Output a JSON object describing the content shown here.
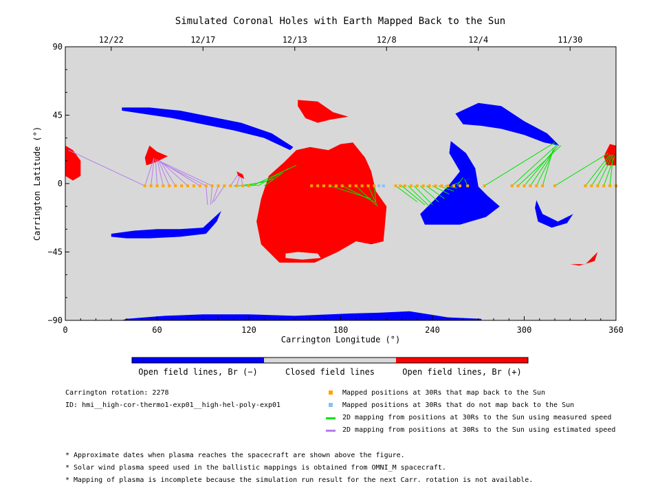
{
  "title": "Simulated Coronal Holes with Earth Mapped Back to the Sun",
  "colors": {
    "closed": "#d8d8d8",
    "open_negative": "#0000ff",
    "open_positive": "#ff0000",
    "mapped": "#ffa500",
    "not_mapped": "#87c1f5",
    "measured": "#00e400",
    "estimated": "#b57cf0"
  },
  "chart_data": {
    "type": "scatter",
    "title": "Simulated Coronal Holes with Earth Mapped Back to the Sun",
    "xlabel": "Carrington Longitude (°)",
    "ylabel": "Carrington Latitude (°)",
    "xlim": [
      0,
      360
    ],
    "ylim": [
      -90,
      90
    ],
    "xticks": [
      0,
      60,
      120,
      180,
      240,
      300,
      360
    ],
    "yticks": [
      -90,
      -45,
      0,
      45,
      90
    ],
    "ytick_labels": [
      "−90",
      "−45",
      "0",
      "45",
      "90"
    ],
    "top_axis": {
      "labels": [
        "12/22",
        "12/17",
        "12/13",
        "12/8",
        "12/4",
        "11/30"
      ],
      "longitudes": [
        30,
        90,
        150,
        210,
        270,
        330
      ]
    },
    "colorbar": {
      "labels": [
        "Open field lines, Br (−)",
        "Closed field lines",
        "Open field lines, Br (+)"
      ]
    },
    "coronal_holes": [
      {
        "polarity": "negative",
        "points": [
          [
            37,
            50
          ],
          [
            55,
            50
          ],
          [
            75,
            48
          ],
          [
            95,
            44
          ],
          [
            115,
            40
          ],
          [
            135,
            33
          ],
          [
            149,
            24
          ],
          [
            147,
            22
          ],
          [
            130,
            30
          ],
          [
            110,
            35
          ],
          [
            90,
            39
          ],
          [
            70,
            43
          ],
          [
            50,
            46
          ],
          [
            37,
            48
          ]
        ]
      },
      {
        "polarity": "negative",
        "points": [
          [
            30,
            -33
          ],
          [
            45,
            -31
          ],
          [
            60,
            -30
          ],
          [
            75,
            -30
          ],
          [
            90,
            -29
          ],
          [
            102,
            -18
          ],
          [
            99,
            -25
          ],
          [
            92,
            -33
          ],
          [
            75,
            -35
          ],
          [
            55,
            -36
          ],
          [
            40,
            -36
          ],
          [
            30,
            -35
          ]
        ]
      },
      {
        "polarity": "negative",
        "points": [
          [
            255,
            46
          ],
          [
            270,
            53
          ],
          [
            285,
            51
          ],
          [
            300,
            41
          ],
          [
            315,
            33
          ],
          [
            323,
            25
          ],
          [
            313,
            27
          ],
          [
            300,
            32
          ],
          [
            285,
            36
          ],
          [
            272,
            38
          ],
          [
            260,
            39
          ]
        ]
      },
      {
        "polarity": "negative",
        "points": [
          [
            252,
            28
          ],
          [
            262,
            20
          ],
          [
            268,
            10
          ],
          [
            270,
            -2
          ],
          [
            276,
            -8
          ],
          [
            284,
            -15
          ],
          [
            275,
            -22
          ],
          [
            258,
            -27
          ],
          [
            235,
            -27
          ],
          [
            232,
            -20
          ],
          [
            240,
            -12
          ],
          [
            250,
            -2
          ],
          [
            258,
            8
          ],
          [
            251,
            20
          ]
        ]
      },
      {
        "polarity": "negative",
        "points": [
          [
            308,
            -11
          ],
          [
            312,
            -20
          ],
          [
            322,
            -25
          ],
          [
            332,
            -20
          ],
          [
            328,
            -26
          ],
          [
            318,
            -29
          ],
          [
            309,
            -25
          ],
          [
            307,
            -16
          ]
        ]
      },
      {
        "polarity": "negative",
        "points": [
          [
            37,
            -90
          ],
          [
            40,
            -89
          ],
          [
            65,
            -87
          ],
          [
            90,
            -86
          ],
          [
            120,
            -86
          ],
          [
            150,
            -87
          ],
          [
            185,
            -85.5
          ],
          [
            205,
            -85
          ],
          [
            225,
            -84
          ],
          [
            250,
            -88
          ],
          [
            272,
            -89
          ],
          [
            272,
            -90
          ]
        ]
      },
      {
        "polarity": "positive",
        "points": [
          [
            151,
            22
          ],
          [
            160,
            24
          ],
          [
            172,
            22
          ],
          [
            180,
            26
          ],
          [
            188,
            27
          ],
          [
            196,
            17
          ],
          [
            200,
            8
          ],
          [
            203,
            -5
          ],
          [
            210,
            -15
          ],
          [
            208,
            -38
          ],
          [
            200,
            -40
          ],
          [
            190,
            -38
          ],
          [
            178,
            -45
          ],
          [
            163,
            -52
          ],
          [
            140,
            -52
          ],
          [
            128,
            -40
          ],
          [
            125,
            -25
          ],
          [
            128,
            -10
          ],
          [
            133,
            5
          ],
          [
            143,
            14
          ],
          [
            149,
            20
          ]
        ]
      },
      {
        "polarity": "positive",
        "points": [
          [
            152,
            55
          ],
          [
            165,
            54
          ],
          [
            175,
            47
          ],
          [
            185,
            44
          ],
          [
            173,
            42
          ],
          [
            165,
            40
          ],
          [
            157,
            43
          ],
          [
            152,
            51
          ]
        ]
      },
      {
        "polarity": "positive",
        "points": [
          [
            55,
            25
          ],
          [
            60,
            21
          ],
          [
            67,
            18
          ],
          [
            59,
            14
          ],
          [
            53,
            12
          ],
          [
            52,
            17
          ]
        ]
      },
      {
        "polarity": "positive",
        "points": [
          [
            0,
            25
          ],
          [
            5,
            22
          ],
          [
            10,
            15
          ],
          [
            10,
            5
          ],
          [
            5,
            2
          ],
          [
            0,
            5
          ]
        ]
      },
      {
        "polarity": "positive",
        "points": [
          [
            356,
            26
          ],
          [
            360,
            25
          ],
          [
            360,
            12
          ],
          [
            354,
            12
          ],
          [
            352,
            18
          ]
        ]
      },
      {
        "polarity": "positive",
        "points": [
          [
            330,
            -53
          ],
          [
            340,
            -53
          ],
          [
            348,
            -45
          ],
          [
            346,
            -51
          ],
          [
            336,
            -54
          ]
        ]
      },
      {
        "polarity": "positive",
        "points": [
          [
            112,
            8
          ],
          [
            116,
            6
          ],
          [
            117,
            3
          ],
          [
            113,
            5
          ]
        ]
      }
    ],
    "closed_islands": [
      {
        "points": [
          [
            144,
            -46
          ],
          [
            152,
            -45
          ],
          [
            165,
            -46
          ],
          [
            167,
            -49
          ],
          [
            155,
            -50
          ],
          [
            144,
            -49
          ]
        ]
      }
    ],
    "mapped_positions": {
      "y": -1.5,
      "x": [
        52,
        56,
        60,
        64,
        68,
        72,
        76,
        80,
        84,
        88,
        92,
        96,
        100,
        104,
        108,
        112,
        116,
        120,
        161,
        165,
        169,
        173,
        177,
        181,
        186,
        190,
        194,
        198,
        202,
        216,
        219,
        222,
        226,
        230,
        234,
        238,
        242,
        246,
        250,
        254,
        258,
        263,
        274,
        292,
        296,
        300,
        304,
        308,
        312,
        320,
        340,
        344,
        348,
        352,
        356,
        360
      ]
    },
    "not_mapped_positions": {
      "y": -1.5,
      "x": [
        205,
        208
      ]
    },
    "measured_mappings": [
      {
        "from": [
          122,
          -1.5
        ],
        "to": [
          151,
          12
        ]
      },
      {
        "from": [
          126,
          -1.5
        ],
        "to": [
          146,
          10
        ]
      },
      {
        "from": [
          130,
          -1.5
        ],
        "to": [
          142,
          7
        ]
      },
      {
        "from": [
          118,
          -1.5
        ],
        "to": [
          136,
          3
        ]
      },
      {
        "from": [
          114,
          -1.5
        ],
        "to": [
          130,
          1
        ]
      },
      {
        "from": [
          110,
          -1.5
        ],
        "to": [
          126,
          -1
        ]
      },
      {
        "from": [
          173,
          -1.5
        ],
        "to": [
          200,
          -10
        ]
      },
      {
        "from": [
          181,
          -1.5
        ],
        "to": [
          202,
          -12
        ]
      },
      {
        "from": [
          190,
          -1.5
        ],
        "to": [
          203,
          -14
        ]
      },
      {
        "from": [
          198,
          -1.5
        ],
        "to": [
          204,
          -15
        ]
      },
      {
        "from": [
          202,
          -1.5
        ],
        "to": [
          203,
          -13
        ]
      },
      {
        "from": [
          216,
          -1.5
        ],
        "to": [
          230,
          -12
        ]
      },
      {
        "from": [
          220,
          -1.5
        ],
        "to": [
          235,
          -14
        ]
      },
      {
        "from": [
          224,
          -1.5
        ],
        "to": [
          238,
          -15
        ]
      },
      {
        "from": [
          228,
          -1.5
        ],
        "to": [
          240,
          -14
        ]
      },
      {
        "from": [
          232,
          -1.5
        ],
        "to": [
          244,
          -12
        ]
      },
      {
        "from": [
          236,
          -1.5
        ],
        "to": [
          248,
          -10
        ]
      },
      {
        "from": [
          240,
          -1.5
        ],
        "to": [
          251,
          -7
        ]
      },
      {
        "from": [
          244,
          -1.5
        ],
        "to": [
          254,
          -5
        ]
      },
      {
        "from": [
          248,
          -1.5
        ],
        "to": [
          256,
          -3
        ]
      },
      {
        "from": [
          252,
          -1.5
        ],
        "to": [
          258,
          1
        ]
      },
      {
        "from": [
          256,
          -1.5
        ],
        "to": [
          260,
          4
        ]
      },
      {
        "from": [
          263,
          -1.5
        ],
        "to": [
          261,
          3
        ]
      },
      {
        "from": [
          274,
          -1.5
        ],
        "to": [
          320,
          27
        ]
      },
      {
        "from": [
          292,
          -1.5
        ],
        "to": [
          322,
          26
        ]
      },
      {
        "from": [
          296,
          -1.5
        ],
        "to": [
          324,
          25
        ]
      },
      {
        "from": [
          300,
          -1.5
        ],
        "to": [
          322,
          25
        ]
      },
      {
        "from": [
          304,
          -1.5
        ],
        "to": [
          321,
          24
        ]
      },
      {
        "from": [
          308,
          -1.5
        ],
        "to": [
          320,
          23
        ]
      },
      {
        "from": [
          312,
          -1.5
        ],
        "to": [
          319,
          23
        ]
      },
      {
        "from": [
          320,
          -1.5
        ],
        "to": [
          355,
          20
        ]
      },
      {
        "from": [
          340,
          -1.5
        ],
        "to": [
          356,
          19
        ]
      },
      {
        "from": [
          344,
          -1.5
        ],
        "to": [
          357,
          19
        ]
      },
      {
        "from": [
          348,
          -1.5
        ],
        "to": [
          358,
          19
        ]
      },
      {
        "from": [
          352,
          -1.5
        ],
        "to": [
          359,
          18
        ]
      },
      {
        "from": [
          356,
          -1.5
        ],
        "to": [
          358,
          17
        ]
      }
    ],
    "estimated_mappings": [
      {
        "from": [
          52,
          -1.5
        ],
        "to": [
          2,
          22
        ]
      },
      {
        "from": [
          52,
          -1.5
        ],
        "to": [
          58,
          17
        ]
      },
      {
        "from": [
          56,
          -1.5
        ],
        "to": [
          58,
          16
        ]
      },
      {
        "from": [
          60,
          -1.5
        ],
        "to": [
          59,
          16
        ]
      },
      {
        "from": [
          64,
          -1.5
        ],
        "to": [
          60,
          16
        ]
      },
      {
        "from": [
          68,
          -1.5
        ],
        "to": [
          61,
          15
        ]
      },
      {
        "from": [
          72,
          -1.5
        ],
        "to": [
          62,
          15
        ]
      },
      {
        "from": [
          80,
          -1.5
        ],
        "to": [
          63,
          14
        ]
      },
      {
        "from": [
          88,
          -1.5
        ],
        "to": [
          63,
          14
        ]
      },
      {
        "from": [
          92,
          -1.5
        ],
        "to": [
          62,
          14
        ]
      },
      {
        "from": [
          96,
          -1.5
        ],
        "to": [
          61,
          15
        ]
      },
      {
        "from": [
          92,
          -1.5
        ],
        "to": [
          93,
          -14
        ]
      },
      {
        "from": [
          96,
          -1.5
        ],
        "to": [
          95,
          -14
        ]
      },
      {
        "from": [
          100,
          -1.5
        ],
        "to": [
          96,
          -13
        ]
      },
      {
        "from": [
          104,
          -1.5
        ],
        "to": [
          97,
          -12
        ]
      },
      {
        "from": [
          108,
          -1.5
        ],
        "to": [
          113,
          6
        ]
      },
      {
        "from": [
          112,
          -1.5
        ],
        "to": [
          114,
          5
        ]
      },
      {
        "from": [
          116,
          -1.5
        ],
        "to": [
          115,
          4
        ]
      }
    ]
  },
  "info": {
    "rotation": "Carrington rotation: 2278",
    "id": "ID: hmi__high-cor-thermo1-exp01__high-hel-poly-exp01"
  },
  "legend": {
    "mapped": "Mapped positions at 30Rs that map back to the Sun",
    "not_mapped": "Mapped positions at 30Rs that do not map back to the Sun",
    "measured": "2D mapping from positions at 30Rs to the Sun using measured speed",
    "estimated": "2D mapping from positions at 30Rs to the Sun using estimated speed"
  },
  "notes": [
    "* Approximate dates when plasma reaches the spacecraft are shown above the figure.",
    "* Solar wind plasma speed used in the ballistic mappings is obtained from OMNI_M spacecraft.",
    "* Mapping of plasma is incomplete because the simulation run result for the next Carr. rotation is not available."
  ]
}
